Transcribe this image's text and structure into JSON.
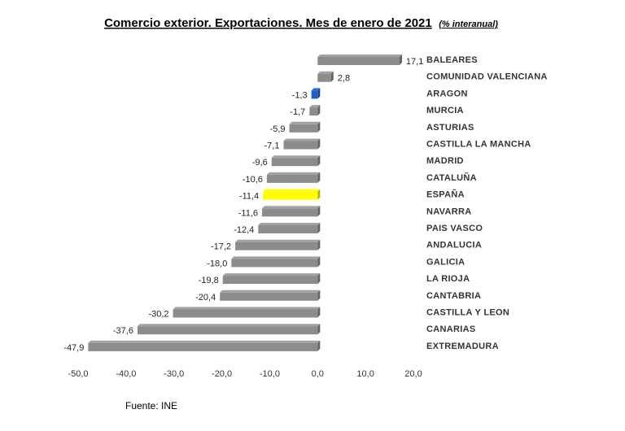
{
  "chart_data": {
    "type": "bar",
    "orientation": "horizontal",
    "title": "Comercio exterior. Exportaciones. Mes de enero de 2021",
    "subtitle": "(% interanual)",
    "categories": [
      "BALEARES",
      "COMUNIDAD VALENCIANA",
      "ARAGON",
      "MURCIA",
      "ASTURIAS",
      "CASTILLA LA MANCHA",
      "MADRID",
      "CATALUÑA",
      "ESPAÑA",
      "NAVARRA",
      "PAIS VASCO",
      "ANDALUCIA",
      "GALICIA",
      "LA RIOJA",
      "CANTABRIA",
      "CASTILLA Y LEON",
      "CANARIAS",
      "EXTREMADURA"
    ],
    "values": [
      17.1,
      2.8,
      -1.3,
      -1.7,
      -5.9,
      -7.1,
      -9.6,
      -10.6,
      -11.4,
      -11.6,
      -12.4,
      -17.2,
      -18.0,
      -19.8,
      -20.4,
      -30.2,
      -37.6,
      -47.9
    ],
    "value_labels": [
      "17,1",
      "2,8",
      "-1,3",
      "-1,7",
      "-5,9",
      "-7,1",
      "-9,6",
      "-10,6",
      "-11,4",
      "-11,6",
      "-12,4",
      "-17,2",
      "-18,0",
      "-19,8",
      "-20,4",
      "-30,2",
      "-37,6",
      "-47,9"
    ],
    "highlight": {
      "ESPAÑA": "#ffff00",
      "ARAGON": "#1f5fbf"
    },
    "bar_color": "#8c8c8c",
    "xlim": [
      -50,
      20
    ],
    "x_ticks": [
      -50,
      -40,
      -30,
      -20,
      -10,
      0,
      10,
      20
    ],
    "x_tick_labels": [
      "-50,0",
      "-40,0",
      "-30,0",
      "-20,0",
      "-10,0",
      "0,0",
      "10,0",
      "20,0"
    ],
    "grid": false,
    "legend": "none",
    "source": "Fuente: INE"
  }
}
